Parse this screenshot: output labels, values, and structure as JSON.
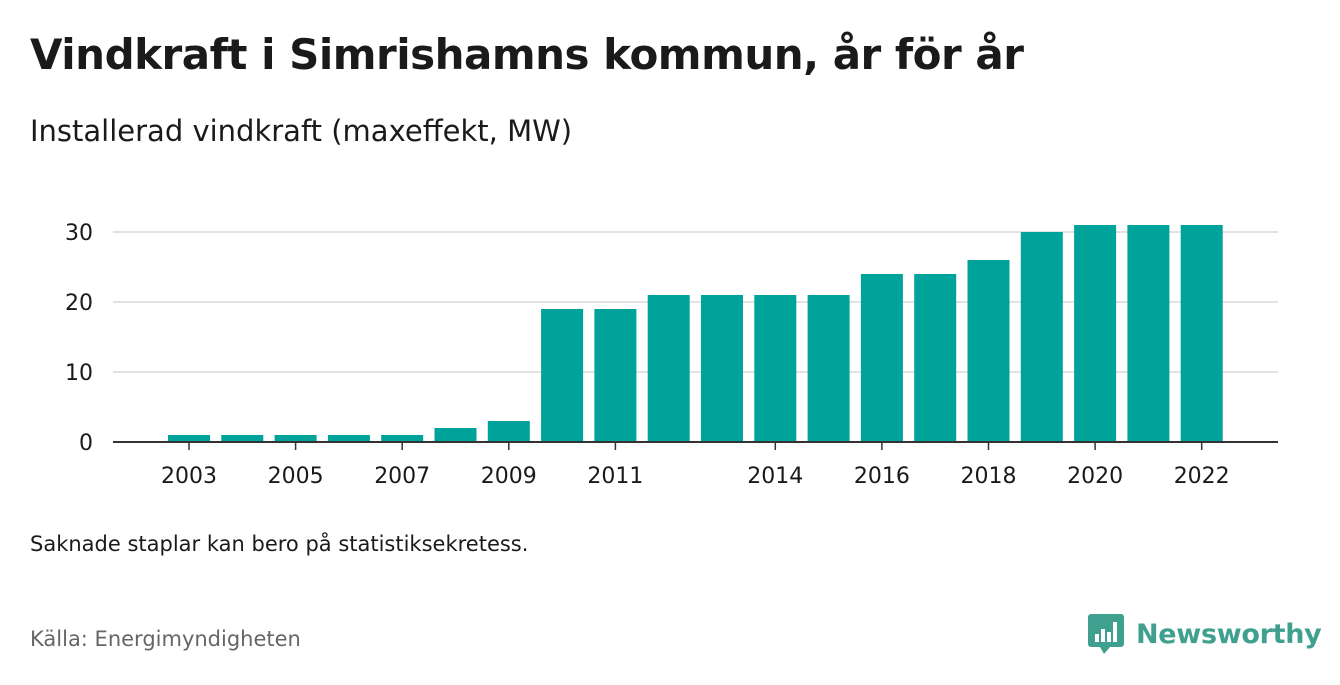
{
  "chart_data": {
    "type": "bar",
    "title": "Vindkraft i Simrishamns kommun, år för år",
    "subtitle": "Installerad vindkraft (maxeffekt, MW)",
    "categories": [
      "2003",
      "2004",
      "2005",
      "2006",
      "2007",
      "2008",
      "2009",
      "2010",
      "2011",
      "2012",
      "2013",
      "2014",
      "2015",
      "2016",
      "2017",
      "2018",
      "2019",
      "2020",
      "2021",
      "2022"
    ],
    "values": [
      1,
      1,
      1,
      1,
      1,
      2,
      3,
      19,
      19,
      21,
      21,
      21,
      21,
      24,
      24,
      26,
      30,
      31,
      31,
      31
    ],
    "x_tick_labels": [
      "2003",
      "2005",
      "2007",
      "2009",
      "2011",
      "2014",
      "2016",
      "2018",
      "2020",
      "2022"
    ],
    "y_ticks": [
      0,
      10,
      20,
      30
    ],
    "ylim": [
      0,
      30
    ],
    "grid": true,
    "bar_color": "#00a39a",
    "xlabel": "",
    "ylabel": ""
  },
  "note": "Saknade staplar kan bero på statistiksekretess.",
  "source": "Källa: Energimyndigheten",
  "brand": {
    "name": "Newsworthy",
    "color": "#40a090",
    "icon": "newsworthy-logo-icon"
  }
}
